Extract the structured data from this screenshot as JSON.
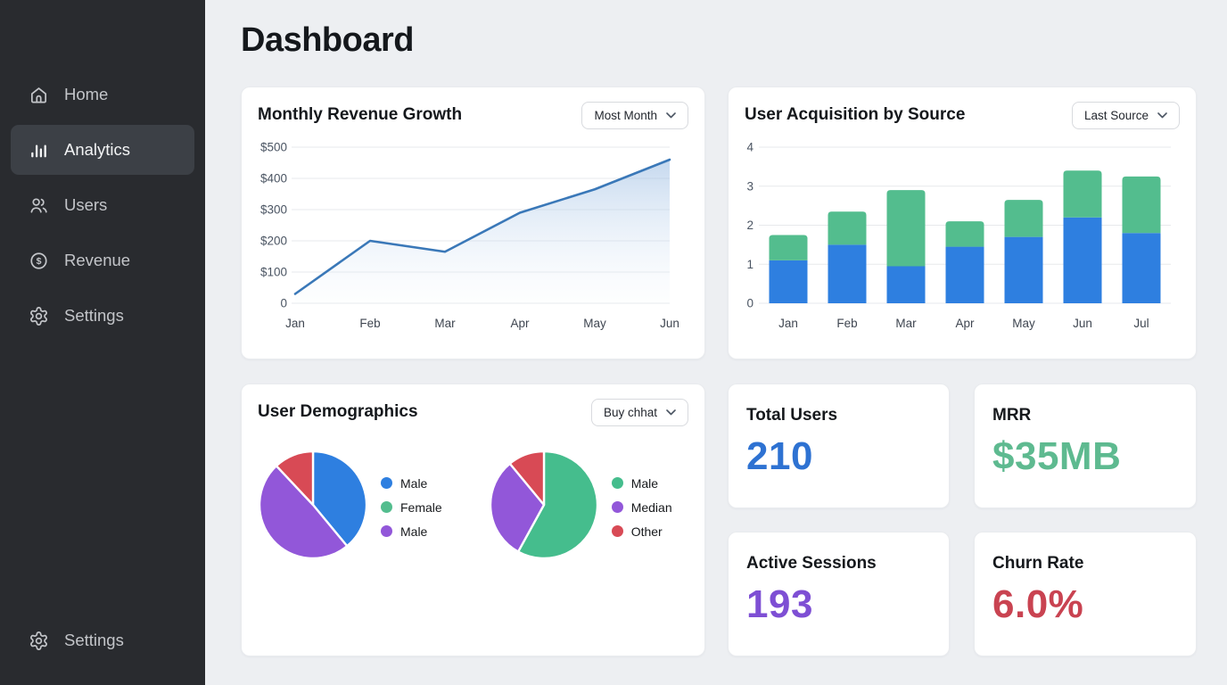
{
  "header": {
    "title": "Dashboard"
  },
  "sidebar": {
    "items": [
      {
        "label": "Home",
        "icon": "home-icon",
        "active": false
      },
      {
        "label": "Analytics",
        "icon": "bar-chart-icon",
        "active": true
      },
      {
        "label": "Users",
        "icon": "users-icon",
        "active": false
      },
      {
        "label": "Revenue",
        "icon": "dollar-circle-icon",
        "active": false
      },
      {
        "label": "Settings",
        "icon": "gear-icon",
        "active": false
      }
    ],
    "footer_item": {
      "label": "Settings",
      "icon": "gear-icon"
    }
  },
  "cards": {
    "revenue": {
      "title": "Monthly Revenue Growth",
      "filter_label": "Most Month"
    },
    "acquisition": {
      "title": "User Acquisition by Source",
      "filter_label": "Last Source"
    },
    "demographics": {
      "title": "User Demographics",
      "filter_label": "Buy chhat"
    }
  },
  "stats": [
    {
      "label": "Total Users",
      "value": "210",
      "color": "#2e72d2"
    },
    {
      "label": "MRR",
      "value": "$35MB",
      "color": "#5eba90"
    },
    {
      "label": "Active Sessions",
      "value": "193",
      "color": "#7e4fd4"
    },
    {
      "label": "Churn Rate",
      "value": "6.0%",
      "color": "#c94351"
    }
  ],
  "chart_data": [
    {
      "id": "monthly-revenue-growth",
      "type": "area",
      "title": "Monthly Revenue Growth",
      "x": [
        "Jan",
        "Feb",
        "Mar",
        "Apr",
        "May",
        "Jun"
      ],
      "values": [
        30,
        200,
        165,
        290,
        365,
        460
      ],
      "ylim": [
        0,
        500
      ],
      "yticks": [
        0,
        100,
        200,
        300,
        400,
        500
      ],
      "ytick_labels": [
        "0",
        "$100",
        "$200",
        "$300",
        "$400",
        "$500"
      ],
      "line_color": "#3a78b8",
      "fill_from": "rgba(150,185,225,0.55)",
      "fill_to": "rgba(240,246,252,0.12)",
      "grid": true,
      "legend_position": "none"
    },
    {
      "id": "user-acquisition-by-source",
      "type": "bar",
      "stacked": true,
      "title": "User Acquisition by Source",
      "categories": [
        "Jan",
        "Feb",
        "Mar",
        "Apr",
        "May",
        "Jun",
        "Jul"
      ],
      "series": [
        {
          "name": "segment-bottom",
          "color": "#2e7fe0",
          "values": [
            1.1,
            1.5,
            0.95,
            1.45,
            1.7,
            2.2,
            1.8
          ]
        },
        {
          "name": "segment-top",
          "color": "#53bd8e",
          "values": [
            0.65,
            0.85,
            1.95,
            0.65,
            0.95,
            1.2,
            1.45
          ]
        }
      ],
      "ylim": [
        0,
        4
      ],
      "yticks": [
        0,
        1,
        2,
        3,
        4
      ],
      "grid": true,
      "legend_position": "none"
    },
    {
      "id": "user-demographics-pie-1",
      "type": "pie",
      "slices": [
        {
          "value": 39,
          "color": "#2e7fe0"
        },
        {
          "value": 49,
          "color": "#9257d9"
        },
        {
          "value": 12,
          "color": "#d84a55"
        }
      ],
      "legend": [
        {
          "label": "Male",
          "color": "#2e7fe0"
        },
        {
          "label": "Female",
          "color": "#53bd8e"
        },
        {
          "label": "Male",
          "color": "#9257d9"
        }
      ]
    },
    {
      "id": "user-demographics-pie-2",
      "type": "pie",
      "slices": [
        {
          "value": 58,
          "color": "#45bd8d"
        },
        {
          "value": 31,
          "color": "#9257d9"
        },
        {
          "value": 11,
          "color": "#d84a55"
        }
      ],
      "legend": [
        {
          "label": "Male",
          "color": "#45bd8d"
        },
        {
          "label": "Median",
          "color": "#9257d9"
        },
        {
          "label": "Other",
          "color": "#d84a55"
        }
      ]
    }
  ],
  "theme": {
    "sidebar_bg": "#292b2f",
    "sidebar_active_bg": "#3c4046",
    "main_bg": "#edeff2",
    "card_bg": "#ffffff",
    "grid_line": "#e7e9ec"
  }
}
